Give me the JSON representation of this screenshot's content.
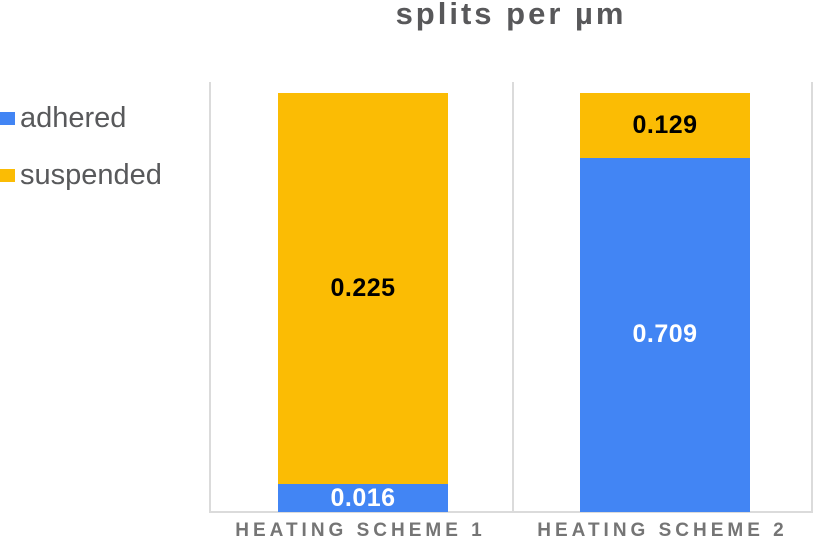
{
  "chart_data": {
    "type": "bar",
    "stacked": "percent",
    "title": "splits per µm",
    "categories": [
      "HEATING SCHEME 1",
      "HEATING SCHEME 2"
    ],
    "series": [
      {
        "name": "adhered",
        "color": "#4285F4",
        "label_color": "#FFFFFF",
        "values": [
          0.016,
          0.709
        ]
      },
      {
        "name": "suspended",
        "color": "#FBBC04",
        "label_color": "#000000",
        "values": [
          0.225,
          0.129
        ]
      }
    ],
    "value_labels": [
      "0.016",
      "0.225",
      "0.709",
      "0.129"
    ],
    "legend_position": "left",
    "grid": "category-divider-lines",
    "axis_ticks_visible": false
  },
  "colors": {
    "adhered_blue": "#4285F4",
    "suspended_yellow": "#FBBC04",
    "title_text": "#58585A",
    "legend_text": "#58595B",
    "axis_label_text": "#757575",
    "gridline": "#DBDBDB",
    "background": "#FFFFFF"
  }
}
